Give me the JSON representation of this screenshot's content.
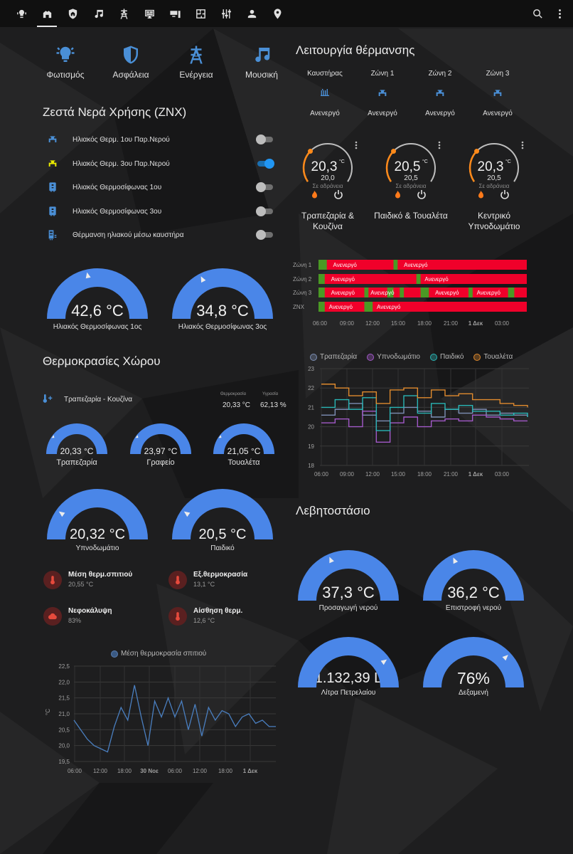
{
  "tabs": [
    {
      "icon": "bulb-waves-icon"
    },
    {
      "icon": "home-icon",
      "active": true
    },
    {
      "icon": "shield-home-icon"
    },
    {
      "icon": "music-icon"
    },
    {
      "icon": "transmission-tower-icon"
    },
    {
      "icon": "monitor-dashboard-icon"
    },
    {
      "icon": "devices-icon"
    },
    {
      "icon": "floor-plan-icon"
    },
    {
      "icon": "tune-vertical-icon"
    },
    {
      "icon": "account-icon"
    },
    {
      "icon": "map-marker-icon"
    }
  ],
  "quick": [
    {
      "label": "Φωτισμός",
      "icon": "lightbulb-icon"
    },
    {
      "label": "Ασφάλεια",
      "icon": "shield-icon"
    },
    {
      "label": "Ενέργεια",
      "icon": "transmission-tower-icon"
    },
    {
      "label": "Μουσική",
      "icon": "music-icon"
    }
  ],
  "znx": {
    "title": "Ζεστά Νερά Χρήσης (ZNX)",
    "rows": [
      {
        "label": "Ηλιακός Θερμ. 1ου Παρ.Νερού",
        "on": false,
        "icon": "valve-icon",
        "icon_color": "#4a8fd6"
      },
      {
        "label": "Ηλιακός Θερμ. 3ου Παρ.Νερού",
        "on": true,
        "icon": "valve-icon",
        "icon_color": "#e8e800"
      },
      {
        "label": "Ηλιακός Θερμοσίφωνας 1ου",
        "on": false,
        "icon": "water-boiler-icon",
        "icon_color": "#4a8fd6"
      },
      {
        "label": "Ηλιακός Θερμοσίφωνας 3ου",
        "on": false,
        "icon": "water-boiler-icon",
        "icon_color": "#4a8fd6"
      },
      {
        "label": "Θέρμανση ηλιακού μέσω καυστήρα",
        "on": false,
        "icon": "boiler-icon",
        "icon_color": "#4a8fd6"
      }
    ],
    "gauges": [
      {
        "value": "42,6 °C",
        "label": "Ηλιακός Θερμοσίφωνας 1ος",
        "fraction": 0.43
      },
      {
        "value": "34,8 °C",
        "label": "Ηλιακός Θερμοσίφωνας 3ος",
        "fraction": 0.35
      }
    ]
  },
  "rooms": {
    "title": "Θερμοκρασίες Χώρου",
    "sensor_name": "Τραπεζαρία - Κουζίνα",
    "temp_head": "Θερμοκρασία",
    "hum_head": "Υγρασία",
    "temp_val": "20,33 °C",
    "hum_val": "62,13 %",
    "small_gauges": [
      {
        "value": "20,33 °C",
        "label": "Τραπεζαρία",
        "fraction": 0.2
      },
      {
        "value": "23,97 °C",
        "label": "Γραφείο",
        "fraction": 0.2
      },
      {
        "value": "21,05 °C",
        "label": "Τουαλέτα",
        "fraction": 0.2
      }
    ],
    "big_gauges": [
      {
        "value": "20,32 °C",
        "label": "Υπνοδωμάτιο",
        "fraction": 0.2
      },
      {
        "value": "20,5 °C",
        "label": "Παιδικό",
        "fraction": 0.2
      }
    ],
    "sensors": [
      {
        "name": "Μέση θερμ.σπιτιού",
        "value": "20,55 °C",
        "icon": "thermometer-icon"
      },
      {
        "name": "Εξ.θερμοκρασία",
        "value": "13,1 °C",
        "icon": "thermometer-icon"
      },
      {
        "name": "Νεφοκάλυψη",
        "value": "83%",
        "icon": "cloud-icon"
      },
      {
        "name": "Αίσθηση θερμ.",
        "value": "12,6 °C",
        "icon": "thermometer-icon"
      }
    ]
  },
  "heating": {
    "title": "Λειτουργία θέρμανσης",
    "modes": [
      {
        "name": "Καυστήρας",
        "state": "Ανενεργό",
        "icon": "radiator-icon"
      },
      {
        "name": "Ζώνη 1",
        "state": "Ανενεργό",
        "icon": "valve-icon"
      },
      {
        "name": "Ζώνη 2",
        "state": "Ανενεργό",
        "icon": "valve-icon"
      },
      {
        "name": "Ζώνη 3",
        "state": "Ανενεργό",
        "icon": "valve-icon"
      }
    ],
    "thermostats": [
      {
        "current": "20,3",
        "unit": "°C",
        "target": "20,0",
        "status": "Σε αδράνεια",
        "name": "Τραπεζαρία & Κουζίνα"
      },
      {
        "current": "20,5",
        "unit": "°C",
        "target": "20,5",
        "status": "Σε αδράνεια",
        "name": "Παιδικό & Τουαλέτα"
      },
      {
        "current": "20,3",
        "unit": "°C",
        "target": "20,5",
        "status": "Σε αδράνεια",
        "name": "Κεντρικό Υπνοδωμάτιο"
      }
    ]
  },
  "timeline": {
    "rows": [
      "Ζώνη 1",
      "Ζώνη 2",
      "Ζώνη 3",
      "ZNX"
    ],
    "state_label": "Ανενεργό",
    "ticks": [
      "06:00",
      "09:00",
      "12:00",
      "15:00",
      "18:00",
      "21:00",
      "1 Δεκ",
      "03:00"
    ]
  },
  "chart_data": [
    {
      "type": "line",
      "legend": [
        "Τραπεζαρία",
        "Υπνοδωμάτιο",
        "Παιδικό",
        "Τουαλέτα"
      ],
      "colors": [
        "#7d8fb5",
        "#a259c8",
        "#29b6b6",
        "#e08a2e"
      ],
      "x_ticks": [
        "06:00",
        "09:00",
        "12:00",
        "15:00",
        "18:00",
        "21:00",
        "1 Δεκ",
        "03:00"
      ],
      "y_ticks": [
        "23",
        "22",
        "21",
        "20",
        "19",
        "18"
      ],
      "ylim": [
        18,
        23
      ],
      "series": [
        {
          "name": "Τραπεζαρία",
          "values": [
            20.6,
            20.9,
            21.2,
            20.6,
            20.3,
            20.7,
            21.0,
            20.8,
            20.5,
            20.9,
            20.7,
            20.9,
            20.6,
            20.7,
            20.6,
            20.5
          ]
        },
        {
          "name": "Υπνοδωμάτιο",
          "values": [
            20.2,
            20.4,
            20.0,
            20.8,
            19.2,
            20.2,
            20.5,
            20.0,
            20.3,
            20.4,
            20.3,
            20.6,
            20.5,
            20.4,
            20.3,
            20.3
          ]
        },
        {
          "name": "Παιδικό",
          "values": [
            21.0,
            21.4,
            20.9,
            21.5,
            19.8,
            21.0,
            21.6,
            20.7,
            21.2,
            20.9,
            21.1,
            20.8,
            20.8,
            20.6,
            20.7,
            20.5
          ]
        },
        {
          "name": "Τουαλέτα",
          "values": [
            22.2,
            22.0,
            21.6,
            21.8,
            21.2,
            21.9,
            22.0,
            21.5,
            21.9,
            21.6,
            21.7,
            21.4,
            21.4,
            21.2,
            21.1,
            21.0
          ]
        }
      ]
    },
    {
      "type": "line",
      "legend": [
        "Μέση θερμοκρασία σπιτιού"
      ],
      "ylabel": "°C",
      "x_ticks": [
        "06:00",
        "12:00",
        "18:00",
        "30 Νοε",
        "06:00",
        "12:00",
        "18:00",
        "1 Δεκ"
      ],
      "y_ticks": [
        "22,5",
        "22,0",
        "21,5",
        "21,0",
        "20,5",
        "20,0",
        "19,5"
      ],
      "ylim": [
        19.5,
        22.5
      ],
      "series": [
        {
          "name": "Μέση θερμοκρασία σπιτιού",
          "values": [
            20.8,
            20.5,
            20.2,
            20.0,
            19.9,
            19.8,
            20.6,
            21.2,
            20.8,
            21.9,
            20.9,
            20.0,
            21.4,
            20.9,
            21.5,
            20.9,
            21.4,
            20.5,
            21.3,
            20.3,
            21.2,
            20.8,
            21.1,
            21.0,
            20.6,
            20.9,
            21.0,
            20.7,
            20.8,
            20.6,
            20.6
          ]
        }
      ]
    }
  ],
  "boiler": {
    "title": "Λεβητοστάσιο",
    "gauges": [
      {
        "value": "37,3 °C",
        "label": "Προσαγωγή νερού",
        "fraction": 0.37
      },
      {
        "value": "36,2 °C",
        "label": "Επιστροφή νερού",
        "fraction": 0.36
      },
      {
        "value": "1.132,39 L",
        "label": "Λίτρα Πετρελαίου",
        "fraction": 0.8
      },
      {
        "value": "76%",
        "label": "Δεξαμενή",
        "fraction": 0.76
      }
    ]
  }
}
